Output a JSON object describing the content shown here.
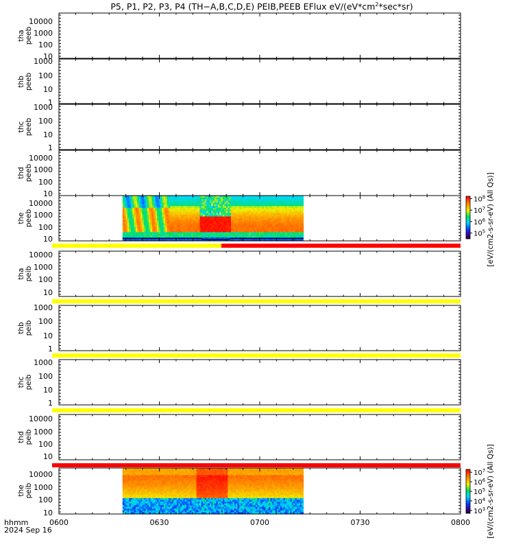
{
  "chart_data": {
    "type": "heatmap",
    "title": "P5, P1, P2, P3, P4 (TH-A,B,C,D,E) PEIB,PEEB EFlux eV/(eV*cm²*sec*sr)",
    "title_parts": [
      "P5, P1, P2, P3, P4 (TH−A,B,C,D,E) PEIB,PEEB EFlux eV/(eV*cm",
      "2",
      "*sec*sr)"
    ],
    "time_axis": {
      "label_line1": "hhmm",
      "label_line2": "2024 Sep 16",
      "tick_labels": [
        "0600",
        "0630",
        "0700",
        "0730",
        "0800"
      ],
      "tick_minutes": [
        0,
        30,
        60,
        90,
        120
      ],
      "range_minutes": [
        0,
        120
      ]
    },
    "panels": [
      {
        "label_line1": "tha",
        "label_line2": "peeb",
        "ticks": [
          "10000",
          "1000",
          "100",
          "10"
        ],
        "log_range": [
          0.7,
          4.6
        ],
        "data_present": false
      },
      {
        "label_line1": "thb",
        "label_line2": "peeb",
        "ticks": [
          "1000",
          "100",
          "10",
          "1"
        ],
        "log_range": [
          0,
          3.1
        ],
        "data_present": false
      },
      {
        "label_line1": "thc",
        "label_line2": "peeb",
        "ticks": [
          "1000",
          "100",
          "10",
          "1"
        ],
        "log_range": [
          -0.1,
          3.1
        ],
        "data_present": false
      },
      {
        "label_line1": "thd",
        "label_line2": "peeb",
        "ticks": [
          "10000",
          "1000",
          "100",
          "10"
        ],
        "log_range": [
          0.7,
          4.6
        ],
        "data_present": false
      },
      {
        "label_line1": "the",
        "label_line2": "peeb",
        "ticks": [
          "10000",
          "1000",
          "100",
          "10"
        ],
        "log_range": [
          0.7,
          4.6
        ],
        "data_present": true,
        "data_range_minutes": [
          19,
          73
        ],
        "colorbar": {
          "ticks": [
            "10",
            "7",
            "10",
            "6",
            "10",
            "5"
          ],
          "tick_values": [
            8,
            7,
            6,
            5
          ],
          "log_range": [
            4.5,
            8.2
          ],
          "label": "[eV/(cm2-s-sr-eV) (All Qs)]"
        }
      },
      {
        "label_line1": "tha",
        "label_line2": "peib",
        "ticks": [
          "10000",
          "1000",
          "100",
          "10"
        ],
        "log_range": [
          0.7,
          4.6
        ],
        "data_present": false
      },
      {
        "label_line1": "thb",
        "label_line2": "peib",
        "ticks": [
          "1000",
          "100",
          "10",
          "1"
        ],
        "log_range": [
          0,
          3.1
        ],
        "data_present": false
      },
      {
        "label_line1": "thc",
        "label_line2": "peib",
        "ticks": [
          "1000",
          "100",
          "10",
          "1"
        ],
        "log_range": [
          -0.1,
          3.1
        ],
        "data_present": false
      },
      {
        "label_line1": "thd",
        "label_line2": "peib",
        "ticks": [
          "10000",
          "1000",
          "100",
          "10"
        ],
        "log_range": [
          0.7,
          4.6
        ],
        "data_present": false
      },
      {
        "label_line1": "the",
        "label_line2": "peib",
        "ticks": [
          "10000",
          "1000",
          "100",
          "10"
        ],
        "log_range": [
          0.7,
          4.6
        ],
        "data_present": true,
        "data_range_minutes": [
          19,
          73
        ],
        "colorbar": {
          "tick_values": [
            7,
            6,
            5,
            4,
            3
          ],
          "log_range": [
            2.7,
            7.3
          ],
          "label": "[eV/(cm2-s-sr-eV) (All Qs)]"
        }
      }
    ],
    "status_bars": [
      {
        "after_panel": 4,
        "segments": [
          {
            "start": 0,
            "end": 59,
            "color": "#ffff00"
          },
          {
            "start": 59,
            "end": 120,
            "color": "#ff0000"
          }
        ]
      },
      {
        "after_panel": 5,
        "segments": [
          {
            "start": 0,
            "end": 120,
            "color": "#ffff00"
          }
        ]
      },
      {
        "after_panel": 6,
        "segments": [
          {
            "start": 0,
            "end": 120,
            "color": "#ffff00"
          }
        ]
      },
      {
        "after_panel": 7,
        "segments": [
          {
            "start": 0,
            "end": 120,
            "color": "#ffff00"
          }
        ]
      },
      {
        "after_panel": 8,
        "segments": [
          {
            "start": 0,
            "end": 120,
            "color": "#ff0000"
          }
        ]
      }
    ],
    "colors": {
      "status_yellow": "#ffff00",
      "status_red": "#ff0000",
      "axis": "#000000"
    }
  }
}
